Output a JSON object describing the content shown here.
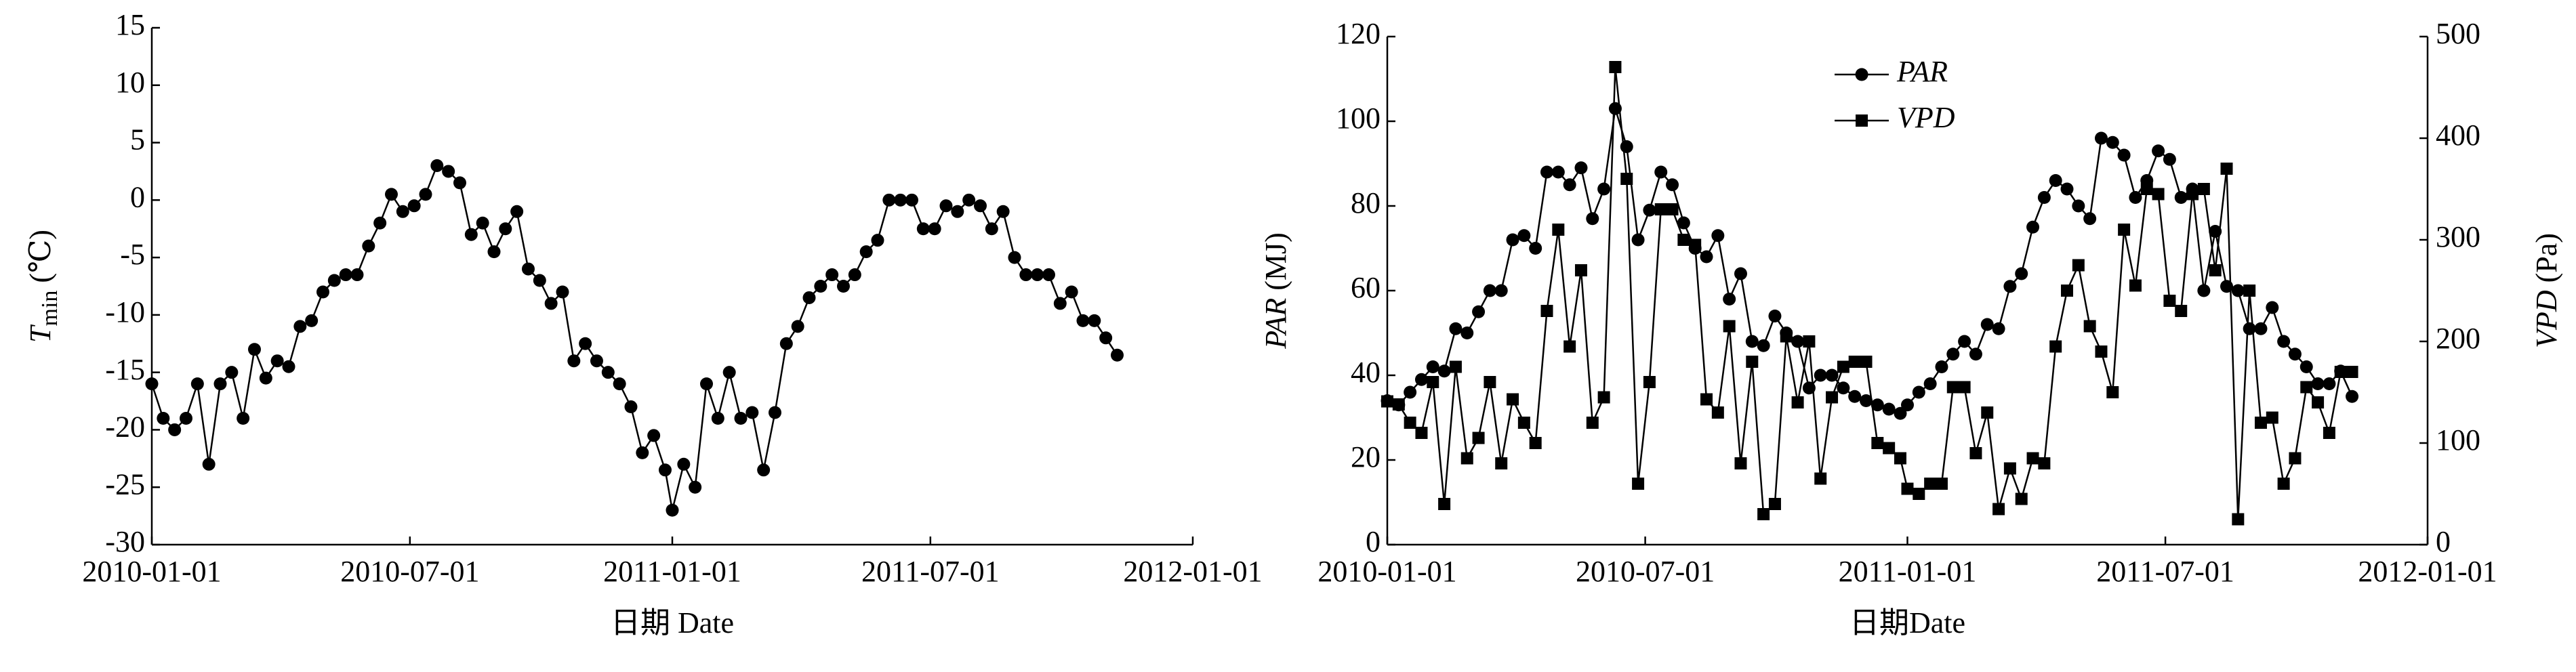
{
  "chart_data": [
    {
      "type": "line",
      "y_label": "T",
      "y_label_sub": "min",
      "y_label_unit": "(℃)",
      "x_label": "日期 Date",
      "xlim": [
        "2010-01-01",
        "2012-01-01"
      ],
      "xticks": [
        "2010-01-01",
        "2010-07-01",
        "2011-01-01",
        "2011-07-01",
        "2012-01-01"
      ],
      "ylim": [
        -30,
        15
      ],
      "yticks": [
        -30,
        -25,
        -20,
        -15,
        -10,
        -5,
        0,
        5,
        10,
        15
      ],
      "x": [
        "2010-01-01",
        "2010-01-09",
        "2010-01-17",
        "2010-01-25",
        "2010-02-02",
        "2010-02-10",
        "2010-02-18",
        "2010-02-26",
        "2010-03-06",
        "2010-03-14",
        "2010-03-22",
        "2010-03-30",
        "2010-04-07",
        "2010-04-15",
        "2010-04-23",
        "2010-05-01",
        "2010-05-09",
        "2010-05-17",
        "2010-05-25",
        "2010-06-02",
        "2010-06-10",
        "2010-06-18",
        "2010-06-26",
        "2010-07-04",
        "2010-07-12",
        "2010-07-20",
        "2010-07-28",
        "2010-08-05",
        "2010-08-13",
        "2010-08-21",
        "2010-08-29",
        "2010-09-06",
        "2010-09-14",
        "2010-09-22",
        "2010-09-30",
        "2010-10-08",
        "2010-10-16",
        "2010-10-24",
        "2010-11-01",
        "2010-11-09",
        "2010-11-17",
        "2010-11-25",
        "2010-12-03",
        "2010-12-11",
        "2010-12-19",
        "2010-12-27",
        "2011-01-01",
        "2011-01-09",
        "2011-01-17",
        "2011-01-25",
        "2011-02-02",
        "2011-02-10",
        "2011-02-18",
        "2011-02-26",
        "2011-03-06",
        "2011-03-14",
        "2011-03-22",
        "2011-03-30",
        "2011-04-07",
        "2011-04-15",
        "2011-04-23",
        "2011-05-01",
        "2011-05-09",
        "2011-05-17",
        "2011-05-25",
        "2011-06-02",
        "2011-06-10",
        "2011-06-18",
        "2011-06-26",
        "2011-07-04",
        "2011-07-12",
        "2011-07-20",
        "2011-07-28",
        "2011-08-05",
        "2011-08-13",
        "2011-08-21",
        "2011-08-29",
        "2011-09-06",
        "2011-09-14",
        "2011-09-22",
        "2011-09-30",
        "2011-10-08",
        "2011-10-16",
        "2011-10-24",
        "2011-11-01",
        "2011-11-09"
      ],
      "series": [
        {
          "name": "Tmin",
          "color": "#000000",
          "marker": "circle",
          "values": [
            -16,
            -19,
            -20,
            -19,
            -16,
            -23,
            -16,
            -15,
            -19,
            -13,
            -15.5,
            -14,
            -14.5,
            -11,
            -10.5,
            -8,
            -7,
            -6.5,
            -6.5,
            -4,
            -2,
            0.5,
            -1,
            -0.5,
            0.5,
            3,
            2.5,
            1.5,
            -3,
            -2,
            -4.5,
            -2.5,
            -1,
            -6,
            -7,
            -9,
            -8,
            -14,
            -12.5,
            -14,
            -15,
            -16,
            -18,
            -22,
            -20.5,
            -23.5,
            -27,
            -23,
            -25,
            -16,
            -19,
            -15,
            -19,
            -18.5,
            -23.5,
            -18.5,
            -12.5,
            -11,
            -8.5,
            -7.5,
            -6.5,
            -7.5,
            -6.5,
            -4.5,
            -3.5,
            0,
            0,
            0,
            -2.5,
            -2.5,
            -0.5,
            -1,
            0,
            -0.5,
            -2.5,
            -1,
            -5,
            -6.5,
            -6.5,
            -6.5,
            -9,
            -8,
            -10.5,
            -10.5,
            -12,
            -13.5
          ]
        }
      ]
    },
    {
      "type": "line",
      "y_label": "PAR",
      "y_label_unit": "(MJ)",
      "y2_label": "VPD",
      "y2_label_unit": "(Pa)",
      "x_label": "日期Date",
      "legend": "upper center",
      "xlim": [
        "2010-01-01",
        "2012-01-01"
      ],
      "xticks": [
        "2010-01-01",
        "2010-07-01",
        "2011-01-01",
        "2011-07-01",
        "2012-01-01"
      ],
      "ylim": [
        0,
        120
      ],
      "yticks": [
        0,
        20,
        40,
        60,
        80,
        100,
        120
      ],
      "y2lim": [
        0,
        500
      ],
      "y2ticks": [
        0,
        100,
        200,
        300,
        400,
        500
      ],
      "x": [
        "2010-01-01",
        "2010-01-09",
        "2010-01-17",
        "2010-01-25",
        "2010-02-02",
        "2010-02-10",
        "2010-02-18",
        "2010-02-26",
        "2010-03-06",
        "2010-03-14",
        "2010-03-22",
        "2010-03-30",
        "2010-04-07",
        "2010-04-15",
        "2010-04-23",
        "2010-05-01",
        "2010-05-09",
        "2010-05-17",
        "2010-05-25",
        "2010-06-02",
        "2010-06-10",
        "2010-06-18",
        "2010-06-26",
        "2010-07-04",
        "2010-07-12",
        "2010-07-20",
        "2010-07-28",
        "2010-08-05",
        "2010-08-13",
        "2010-08-21",
        "2010-08-29",
        "2010-09-06",
        "2010-09-14",
        "2010-09-22",
        "2010-09-30",
        "2010-10-08",
        "2010-10-16",
        "2010-10-24",
        "2010-11-01",
        "2010-11-09",
        "2010-11-17",
        "2010-11-25",
        "2010-12-03",
        "2010-12-11",
        "2010-12-19",
        "2010-12-27",
        "2011-01-01",
        "2011-01-09",
        "2011-01-17",
        "2011-01-25",
        "2011-02-02",
        "2011-02-10",
        "2011-02-18",
        "2011-02-26",
        "2011-03-06",
        "2011-03-14",
        "2011-03-22",
        "2011-03-30",
        "2011-04-07",
        "2011-04-15",
        "2011-04-23",
        "2011-05-01",
        "2011-05-09",
        "2011-05-17",
        "2011-05-25",
        "2011-06-02",
        "2011-06-10",
        "2011-06-18",
        "2011-06-26",
        "2011-07-04",
        "2011-07-12",
        "2011-07-20",
        "2011-07-28",
        "2011-08-05",
        "2011-08-13",
        "2011-08-21",
        "2011-08-29",
        "2011-09-06",
        "2011-09-14",
        "2011-09-22",
        "2011-09-30",
        "2011-10-08",
        "2011-10-16",
        "2011-10-24",
        "2011-11-01",
        "2011-11-09"
      ],
      "series": [
        {
          "name": "PAR",
          "color": "#000000",
          "marker": "circle",
          "values": [
            34,
            33,
            36,
            39,
            42,
            41,
            51,
            50,
            55,
            60,
            60,
            72,
            73,
            70,
            88,
            88,
            85,
            89,
            77,
            84,
            103,
            94,
            72,
            79,
            88,
            85,
            76,
            70,
            68,
            73,
            58,
            64,
            48,
            47,
            54,
            50,
            48,
            37,
            40,
            40,
            37,
            35,
            34,
            33,
            32,
            31,
            33,
            36,
            38,
            42,
            45,
            48,
            45,
            52,
            51,
            61,
            64,
            75,
            82,
            86,
            84,
            80,
            77,
            96,
            95,
            92,
            82,
            86,
            93,
            91,
            82,
            84,
            60,
            74,
            61,
            60,
            51,
            51,
            56,
            48,
            45,
            42,
            38,
            38,
            41,
            35
          ]
        },
        {
          "name": "VPD",
          "color": "#000000",
          "marker": "square",
          "axis": "y2",
          "values": [
            141,
            138,
            120,
            110,
            160,
            40,
            175,
            85,
            105,
            160,
            80,
            143,
            120,
            100,
            230,
            310,
            195,
            270,
            120,
            145,
            470,
            360,
            60,
            160,
            330,
            330,
            300,
            295,
            143,
            130,
            215,
            80,
            180,
            30,
            40,
            205,
            140,
            200,
            65,
            145,
            175,
            180,
            180,
            100,
            95,
            85,
            55,
            50,
            60,
            60,
            155,
            155,
            90,
            130,
            35,
            75,
            45,
            85,
            80,
            195,
            250,
            275,
            215,
            190,
            150,
            310,
            255,
            350,
            345,
            240,
            230,
            345,
            350,
            270,
            370,
            25,
            250,
            120,
            125,
            60,
            85,
            155,
            140,
            110,
            170,
            170
          ]
        }
      ]
    }
  ]
}
